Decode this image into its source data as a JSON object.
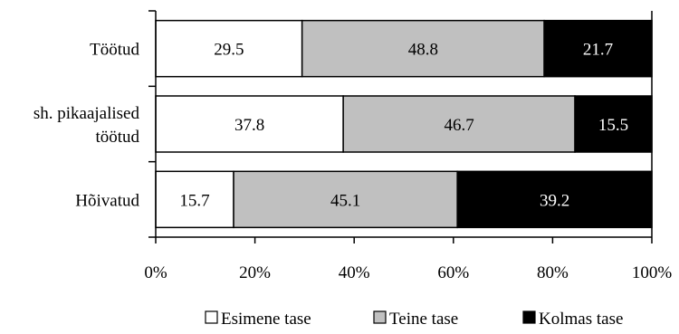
{
  "chart_data": {
    "type": "bar",
    "orientation": "horizontal",
    "stacked": "percent",
    "categories": [
      [
        "Töötud"
      ],
      [
        "sh. pikaajalised",
        "töötud"
      ],
      [
        "Hõivatud"
      ]
    ],
    "series": [
      {
        "name": "Esimene tase",
        "color": "#ffffff",
        "values": [
          29.5,
          37.8,
          15.7
        ]
      },
      {
        "name": "Teine tase",
        "color": "#c0c0c0",
        "values": [
          48.8,
          46.7,
          45.1
        ]
      },
      {
        "name": "Kolmas tase",
        "color": "#000000",
        "values": [
          21.7,
          15.5,
          39.2
        ]
      }
    ],
    "x_ticks": [
      "0%",
      "20%",
      "40%",
      "60%",
      "80%",
      "100%"
    ],
    "xlim": [
      0,
      100
    ],
    "legend_position": "bottom",
    "grid": false,
    "title": "",
    "xlabel": "",
    "ylabel": ""
  }
}
